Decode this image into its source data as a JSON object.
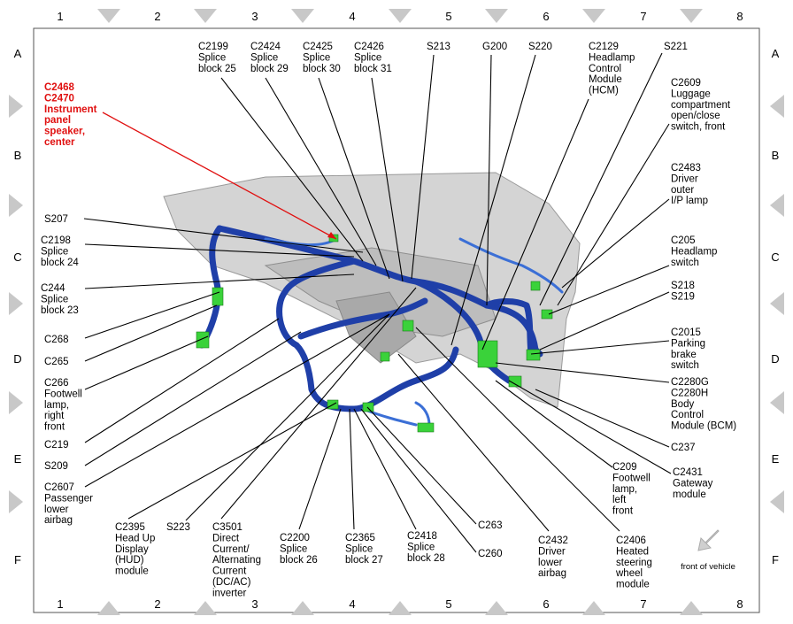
{
  "grid": {
    "columns": [
      "1",
      "2",
      "3",
      "4",
      "5",
      "6",
      "7",
      "8"
    ],
    "rows": [
      "A",
      "B",
      "C",
      "D",
      "E",
      "F"
    ]
  },
  "highlighted_label": {
    "lines": [
      "C2468",
      "C2470",
      "Instrument",
      "panel",
      "speaker,",
      "center"
    ]
  },
  "labels": [
    {
      "lines": [
        "C2199",
        "Splice",
        "block 25"
      ]
    },
    {
      "lines": [
        "C2424",
        "Splice",
        "block 29"
      ]
    },
    {
      "lines": [
        "C2425",
        "Splice",
        "block 30"
      ]
    },
    {
      "lines": [
        "C2426",
        "Splice",
        "block 31"
      ]
    },
    {
      "lines": [
        "S213"
      ]
    },
    {
      "lines": [
        "G200"
      ]
    },
    {
      "lines": [
        "S220"
      ]
    },
    {
      "lines": [
        "C2129",
        "Headlamp",
        "Control",
        "Module",
        "(HCM)"
      ]
    },
    {
      "lines": [
        "S221"
      ]
    },
    {
      "lines": [
        "C2609",
        "Luggage",
        "compartment",
        "open/close",
        "switch, front"
      ]
    },
    {
      "lines": [
        "C2483",
        "Driver",
        "outer",
        "I/P lamp"
      ]
    },
    {
      "lines": [
        "C205",
        "Headlamp",
        "switch"
      ]
    },
    {
      "lines": [
        "S218",
        "S219"
      ]
    },
    {
      "lines": [
        "C2015",
        "Parking",
        "brake",
        "switch"
      ]
    },
    {
      "lines": [
        "C2280G",
        "C2280H",
        "Body",
        "Control",
        "Module (BCM)"
      ]
    },
    {
      "lines": [
        "C237"
      ]
    },
    {
      "lines": [
        "C2431",
        "Gateway",
        "module"
      ]
    },
    {
      "lines": [
        "C209",
        "Footwell",
        "lamp,",
        "left",
        "front"
      ]
    },
    {
      "lines": [
        "C2406",
        "Heated",
        "steering",
        "wheel",
        "module"
      ]
    },
    {
      "lines": [
        "C2432",
        "Driver",
        "lower",
        "airbag"
      ]
    },
    {
      "lines": [
        "C263"
      ]
    },
    {
      "lines": [
        "C260"
      ]
    },
    {
      "lines": [
        "C2418",
        "Splice",
        "block 28"
      ]
    },
    {
      "lines": [
        "C2365",
        "Splice",
        "block 27"
      ]
    },
    {
      "lines": [
        "C2200",
        "Splice",
        "block 26"
      ]
    },
    {
      "lines": [
        "C3501",
        "Direct",
        "Current/",
        "Alternating",
        "Current",
        "(DC/AC)",
        "inverter"
      ]
    },
    {
      "lines": [
        "S223"
      ]
    },
    {
      "lines": [
        "C2395",
        "Head Up",
        "Display",
        "(HUD)",
        "module"
      ]
    },
    {
      "lines": [
        "S207"
      ]
    },
    {
      "lines": [
        "C2198",
        "Splice",
        "block 24"
      ]
    },
    {
      "lines": [
        "C244",
        "Splice",
        "block 23"
      ]
    },
    {
      "lines": [
        "C268"
      ]
    },
    {
      "lines": [
        "C265"
      ]
    },
    {
      "lines": [
        "C266",
        "Footwell",
        "lamp,",
        "right",
        "front"
      ]
    },
    {
      "lines": [
        "C219"
      ]
    },
    {
      "lines": [
        "S209"
      ]
    },
    {
      "lines": [
        "C2607",
        "Passenger",
        "lower",
        "airbag"
      ]
    }
  ],
  "front_indicator": "front of vehicle"
}
